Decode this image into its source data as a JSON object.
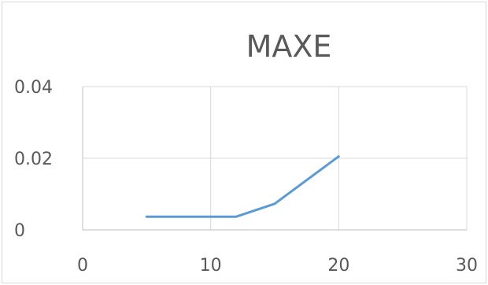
{
  "chart_data": {
    "type": "scatter",
    "title": "MAXE",
    "xlabel": "",
    "ylabel": "",
    "xlim": [
      0,
      30
    ],
    "ylim": [
      0,
      0.04
    ],
    "x_ticks": [
      "0",
      "10",
      "20",
      "30"
    ],
    "y_ticks": [
      "0",
      "0.02",
      "0.04"
    ],
    "grid": true,
    "legend": "none",
    "series": [
      {
        "color": "#5b9bd5",
        "line": true,
        "x": [
          5,
          12,
          15,
          20
        ],
        "y": [
          0.0037,
          0.0037,
          0.0073,
          0.0205
        ]
      }
    ]
  }
}
